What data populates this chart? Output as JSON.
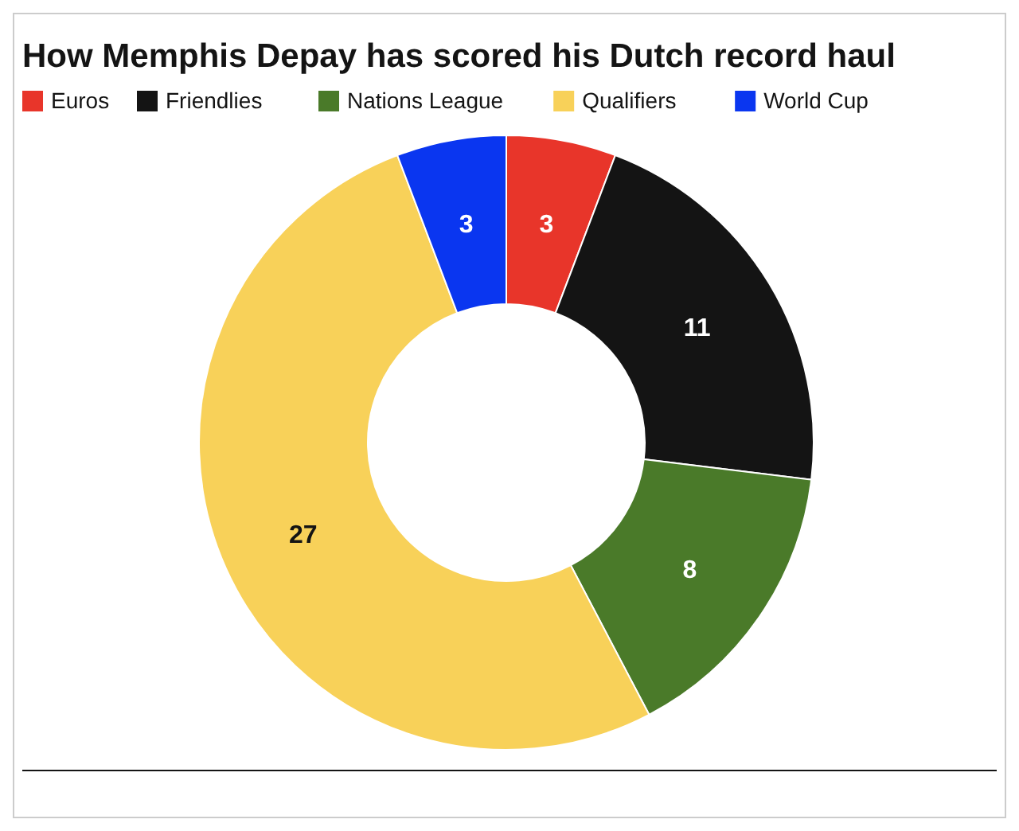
{
  "chart_data": {
    "type": "donut",
    "title": "How Memphis Depay has scored his Dutch record haul",
    "categories": [
      "Euros",
      "Friendlies",
      "Nations League",
      "Qualifiers",
      "World Cup"
    ],
    "values": [
      3,
      11,
      8,
      27,
      3
    ],
    "colors": [
      "#e8352a",
      "#141414",
      "#4a7a29",
      "#f8d159",
      "#0a36f0"
    ],
    "data_labels": true,
    "legend": "top"
  }
}
